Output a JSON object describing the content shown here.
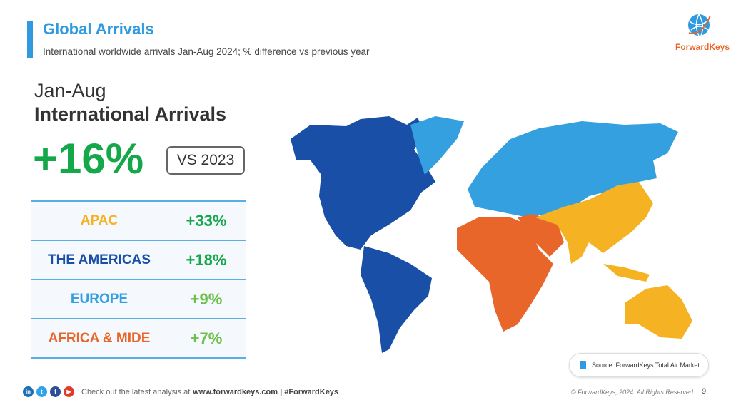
{
  "header": {
    "title": "Global Arrivals",
    "subtitle": "International worldwide arrivals Jan-Aug 2024; % difference vs previous year"
  },
  "logo": {
    "text": "ForwardKeys"
  },
  "summary": {
    "period": "Jan-Aug",
    "metric": "International Arrivals",
    "value": "+16%",
    "comparison": "VS 2023"
  },
  "regions": [
    {
      "name": "APAC",
      "value": "+33%",
      "color": "#f5b324",
      "value_color": "#15a84a"
    },
    {
      "name": "THE AMERICAS",
      "value": "+18%",
      "color": "#1a4fa8",
      "value_color": "#15a84a"
    },
    {
      "name": "EUROPE",
      "value": "+9%",
      "color": "#35a0e0",
      "value_color": "#6cc04a"
    },
    {
      "name": "AFRICA & MIDE",
      "value": "+7%",
      "color": "#e8662a",
      "value_color": "#6cc04a"
    }
  ],
  "source": "Source: ForwardKeys Total Air Market",
  "footer": {
    "prefix": "Check out the latest analysis at ",
    "link": "www.forwardkeys.com | #ForwardKeys",
    "copyright": "© ForwardKeys, 2024. All Rights Reserved.",
    "page": "9"
  },
  "social": [
    "in",
    "t",
    "f",
    "▶"
  ]
}
